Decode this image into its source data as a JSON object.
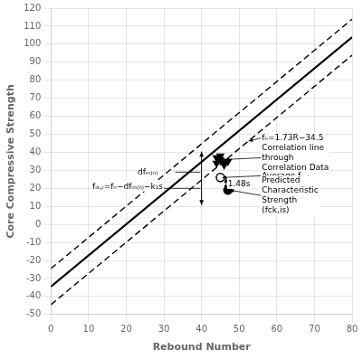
{
  "chart_data": {
    "type": "scatter",
    "xlabel": "Rebound Number",
    "ylabel": "Core Compressive Strength",
    "xlim": [
      0,
      80
    ],
    "ylim": [
      -50,
      120
    ],
    "xticks": [
      0,
      10,
      20,
      30,
      40,
      50,
      60,
      70,
      80
    ],
    "yticks": [
      -50,
      -40,
      -30,
      -20,
      -10,
      0,
      10,
      20,
      30,
      40,
      50,
      60,
      70,
      80,
      90,
      100,
      110,
      120
    ],
    "grid": true,
    "series": [
      {
        "type": "line",
        "x": [
          0,
          80
        ],
        "values": [
          -24.5,
          113.9
        ],
        "line_style": "dashed",
        "color": "#000000"
      },
      {
        "type": "line",
        "x": [
          0,
          80
        ],
        "values": [
          -34.5,
          103.9
        ],
        "line_style": "solid",
        "color": "#000000"
      },
      {
        "type": "line",
        "x": [
          0,
          80
        ],
        "values": [
          -44.5,
          93.9
        ],
        "line_style": "dashed",
        "color": "#000000"
      },
      {
        "type": "scatter",
        "x": [
          44,
          45,
          46,
          47,
          44,
          45,
          46
        ],
        "values": [
          34,
          36,
          33,
          35,
          37,
          38,
          35
        ],
        "marker": "triangle_down",
        "color": "#000000"
      },
      {
        "type": "scatter",
        "x": [
          45
        ],
        "values": [
          26
        ],
        "marker": "circle_open",
        "color": "#000000"
      },
      {
        "type": "scatter",
        "x": [
          47
        ],
        "values": [
          19
        ],
        "marker": "circle",
        "color": "#000000"
      }
    ],
    "double_arrows": [
      {
        "x": 40,
        "y": [
          10.7,
          40.4
        ]
      },
      {
        "x": 46.5,
        "y": [
          19,
          26
        ]
      }
    ],
    "annotations": [
      {
        "text": "dfₘ₍ₙ₎",
        "x": 23,
        "y": 29,
        "line_from": [
          33,
          29
        ],
        "line_to": [
          39.7,
          29
        ]
      },
      {
        "text": "fᵢₛ,ᵢ=fₙ−dfₘ₍ₙ₎−k₁s",
        "x": 11,
        "y": 21,
        "line_from": [
          28.5,
          20
        ],
        "line_to": [
          39.7,
          20
        ]
      },
      {
        "text": "1.48s",
        "x": 47,
        "y": 22.5
      },
      {
        "text": "fₙ=1.73R−34.5",
        "x": 56,
        "y": 48,
        "arrow_to": [
          52.5,
          46.3
        ]
      },
      {
        "text": "Correlation line\nthrough\nCorrelation Data",
        "x": 56,
        "y": 37,
        "arrow_to": [
          46.2,
          36
        ]
      },
      {
        "text": "Average fᵢₛ,ᵢ",
        "x": 56,
        "y": 27,
        "arrow_to": [
          45.5,
          26
        ]
      },
      {
        "text": "Predicted\nCharacteristic\nStrength\n(fck,is)",
        "x": 56,
        "y": 16,
        "arrow_to": [
          47.5,
          19
        ]
      }
    ]
  }
}
